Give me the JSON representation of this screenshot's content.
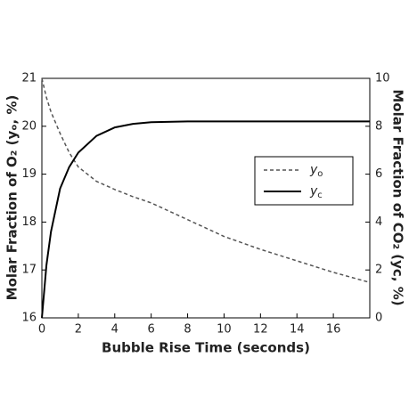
{
  "chart_data": {
    "type": "line",
    "xlabel": "Bubble Rise Time (seconds)",
    "ylabel": "Molar Fraction of O₂ (yₒ, %)",
    "y2label": "Molar Fraction of CO₂ (yc, %)",
    "x": [
      0,
      0.25,
      0.5,
      1,
      1.5,
      2,
      3,
      4,
      5,
      6,
      8,
      10,
      12,
      14,
      16,
      18
    ],
    "series": [
      {
        "name": "yo",
        "color": "#555555",
        "dash": true,
        "axis": "y",
        "values": [
          21,
          20.6,
          20.3,
          19.85,
          19.45,
          19.15,
          18.85,
          18.68,
          18.53,
          18.4,
          18.05,
          17.7,
          17.43,
          17.19,
          16.95,
          16.74
        ]
      },
      {
        "name": "yc",
        "color": "#000000",
        "dash": false,
        "axis": "y2",
        "values": [
          0,
          2.2,
          3.6,
          5.4,
          6.3,
          6.9,
          7.6,
          7.95,
          8.1,
          8.17,
          8.2,
          8.2,
          8.2,
          8.2,
          8.2,
          8.2
        ]
      }
    ],
    "xlim": [
      0,
      18
    ],
    "xticks": [
      0,
      2,
      4,
      6,
      8,
      10,
      12,
      14,
      16
    ],
    "ylim": [
      16,
      21
    ],
    "yticks": [
      16,
      17,
      18,
      19,
      20,
      21
    ],
    "y2lim": [
      0,
      10
    ],
    "y2ticks": [
      0,
      2,
      4,
      6,
      8,
      10
    ]
  }
}
